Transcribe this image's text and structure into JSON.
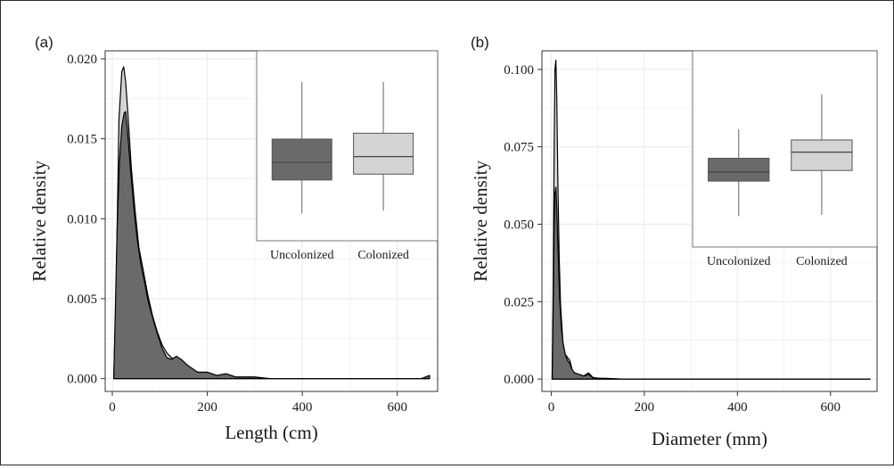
{
  "colors": {
    "uncolonized": "#6a6a6a",
    "colonized": "#d4d4d4",
    "grid": "#ebebeb",
    "panel_border": "#333333",
    "line": "#000000"
  },
  "chart_data": [
    {
      "type": "area",
      "panel_label": "(a)",
      "xlabel": "Length (cm)",
      "ylabel": "Relative density",
      "xlim": [
        -15,
        685
      ],
      "ylim": [
        -0.0008,
        0.0205
      ],
      "xticks": [
        0,
        200,
        400,
        600
      ],
      "xtick_labels": [
        "0",
        "200",
        "400",
        "600"
      ],
      "yticks": [
        0,
        0.005,
        0.01,
        0.015,
        0.02
      ],
      "ytick_labels": [
        "0.000",
        "0.005",
        "0.010",
        "0.015",
        "0.020"
      ],
      "grid": true,
      "series": [
        {
          "name": "Colonized",
          "color": "#d4d4d4",
          "x": [
            3,
            8,
            14,
            20,
            24,
            28,
            33,
            40,
            48,
            56,
            65,
            75,
            85,
            95,
            105,
            115,
            125,
            135,
            145,
            160,
            180,
            200,
            220,
            240,
            260,
            280,
            300,
            330,
            360,
            400,
            450,
            500,
            550,
            600,
            650,
            668
          ],
          "y": [
            0.0,
            0.0055,
            0.0162,
            0.0192,
            0.0195,
            0.0186,
            0.0165,
            0.0132,
            0.0105,
            0.0082,
            0.0068,
            0.0052,
            0.0039,
            0.0029,
            0.0021,
            0.0016,
            0.0013,
            0.0012,
            0.001,
            0.0007,
            0.0004,
            0.0004,
            0.0002,
            0.0003,
            0.0001,
            0.0001,
            0.0001,
            0.0,
            0.0,
            0.0,
            0.0,
            0.0,
            0.0,
            0.0,
            0.0,
            0.0
          ]
        },
        {
          "name": "Uncolonized",
          "color": "#6a6a6a",
          "x": [
            3,
            6,
            10,
            15,
            20,
            25,
            28,
            32,
            38,
            45,
            52,
            60,
            68,
            75,
            85,
            95,
            105,
            115,
            125,
            135,
            145,
            160,
            180,
            200,
            220,
            240,
            260,
            280,
            300,
            330,
            360,
            400,
            450,
            500,
            550,
            600,
            650,
            668
          ],
          "y": [
            0.0,
            0.0038,
            0.0092,
            0.0135,
            0.0158,
            0.0166,
            0.0167,
            0.0155,
            0.0132,
            0.0108,
            0.0088,
            0.0072,
            0.006,
            0.0049,
            0.0038,
            0.0028,
            0.0019,
            0.0013,
            0.0012,
            0.0014,
            0.0012,
            0.0008,
            0.0004,
            0.0004,
            0.0002,
            0.0003,
            0.0001,
            0.0001,
            0.0001,
            0.0,
            0.0,
            0.0,
            0.0,
            0.0,
            0.0,
            0.0,
            0.0,
            0.0002
          ]
        }
      ],
      "inset": {
        "type": "box",
        "categories": [
          "Uncolonized",
          "Colonized"
        ],
        "colors": [
          "#6a6a6a",
          "#d4d4d4"
        ],
        "ylim": [
          0,
          1
        ],
        "boxes": [
          {
            "whisker_low": 0.1,
            "q1": 0.33,
            "median": 0.45,
            "q3": 0.61,
            "whisker_high": 1.0
          },
          {
            "whisker_low": 0.12,
            "q1": 0.37,
            "median": 0.49,
            "q3": 0.65,
            "whisker_high": 1.0
          }
        ]
      }
    },
    {
      "type": "area",
      "panel_label": "(b)",
      "xlabel": "Diameter (mm)",
      "ylabel": "Relative density",
      "xlim": [
        -20,
        700
      ],
      "ylim": [
        -0.004,
        0.106
      ],
      "xticks": [
        0,
        200,
        400,
        600
      ],
      "xtick_labels": [
        "0",
        "200",
        "400",
        "600"
      ],
      "yticks": [
        0,
        0.025,
        0.05,
        0.075,
        0.1
      ],
      "ytick_labels": [
        "0.000",
        "0.025",
        "0.050",
        "0.075",
        "0.100"
      ],
      "grid": true,
      "series": [
        {
          "name": "Colonized",
          "color": "#d4d4d4",
          "x": [
            2,
            4,
            6,
            8,
            10,
            12,
            14,
            17,
            20,
            25,
            30,
            35,
            40,
            45,
            50,
            60,
            70,
            80,
            90,
            100,
            120,
            150,
            200,
            300,
            400,
            500,
            600,
            685
          ],
          "y": [
            0.0,
            0.028,
            0.07,
            0.1,
            0.103,
            0.09,
            0.066,
            0.04,
            0.024,
            0.012,
            0.008,
            0.007,
            0.006,
            0.003,
            0.002,
            0.0015,
            0.001,
            0.002,
            0.0005,
            0.0003,
            0.0002,
            0.0,
            0.0,
            0.0,
            0.0,
            0.0,
            0.0,
            0.0
          ]
        },
        {
          "name": "Uncolonized",
          "color": "#6a6a6a",
          "x": [
            2,
            4,
            6,
            8,
            10,
            12,
            15,
            18,
            22,
            26,
            30,
            35,
            40,
            45,
            50,
            60,
            70,
            80,
            90,
            100,
            120,
            150,
            200,
            300,
            400,
            500,
            600,
            685
          ],
          "y": [
            0.0,
            0.02,
            0.048,
            0.06,
            0.062,
            0.055,
            0.04,
            0.026,
            0.016,
            0.011,
            0.008,
            0.006,
            0.005,
            0.003,
            0.002,
            0.0015,
            0.001,
            0.0015,
            0.0004,
            0.0002,
            0.0001,
            0.0,
            0.0,
            0.0,
            0.0,
            0.0,
            0.0,
            0.0
          ]
        }
      ],
      "inset": {
        "type": "box",
        "categories": [
          "Uncolonized",
          "Colonized"
        ],
        "colors": [
          "#6a6a6a",
          "#d4d4d4"
        ],
        "ylim": [
          0,
          1
        ],
        "boxes": [
          {
            "whisker_low": 0.12,
            "q1": 0.35,
            "median": 0.41,
            "q3": 0.5,
            "whisker_high": 0.69
          },
          {
            "whisker_low": 0.13,
            "q1": 0.42,
            "median": 0.54,
            "q3": 0.62,
            "whisker_high": 0.92
          }
        ]
      }
    }
  ]
}
